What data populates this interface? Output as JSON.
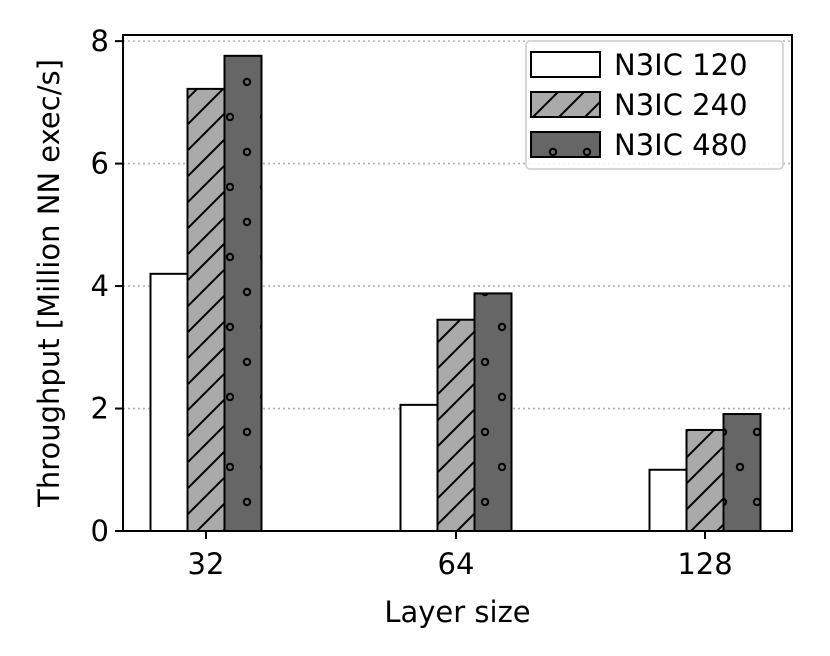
{
  "chart_data": {
    "type": "bar",
    "xlabel": "Layer size",
    "ylabel": "Throughput [Million NN exec/s]",
    "categories": [
      "32",
      "64",
      "128"
    ],
    "ylim": [
      0,
      8.1
    ],
    "yticks": [
      0,
      2,
      4,
      6,
      8
    ],
    "grid": "y-dotted",
    "legend_position": "top-right",
    "series": [
      {
        "name": "N3IC 120",
        "values": [
          4.2,
          2.06,
          1.0
        ],
        "color": "#ffffff",
        "pattern": "none"
      },
      {
        "name": "N3IC 240",
        "values": [
          7.22,
          3.45,
          1.65
        ],
        "color": "#aaaaaa",
        "pattern": "diagonal-hatch"
      },
      {
        "name": "N3IC 480",
        "values": [
          7.76,
          3.88,
          1.91
        ],
        "color": "#666666",
        "pattern": "circles"
      }
    ]
  }
}
